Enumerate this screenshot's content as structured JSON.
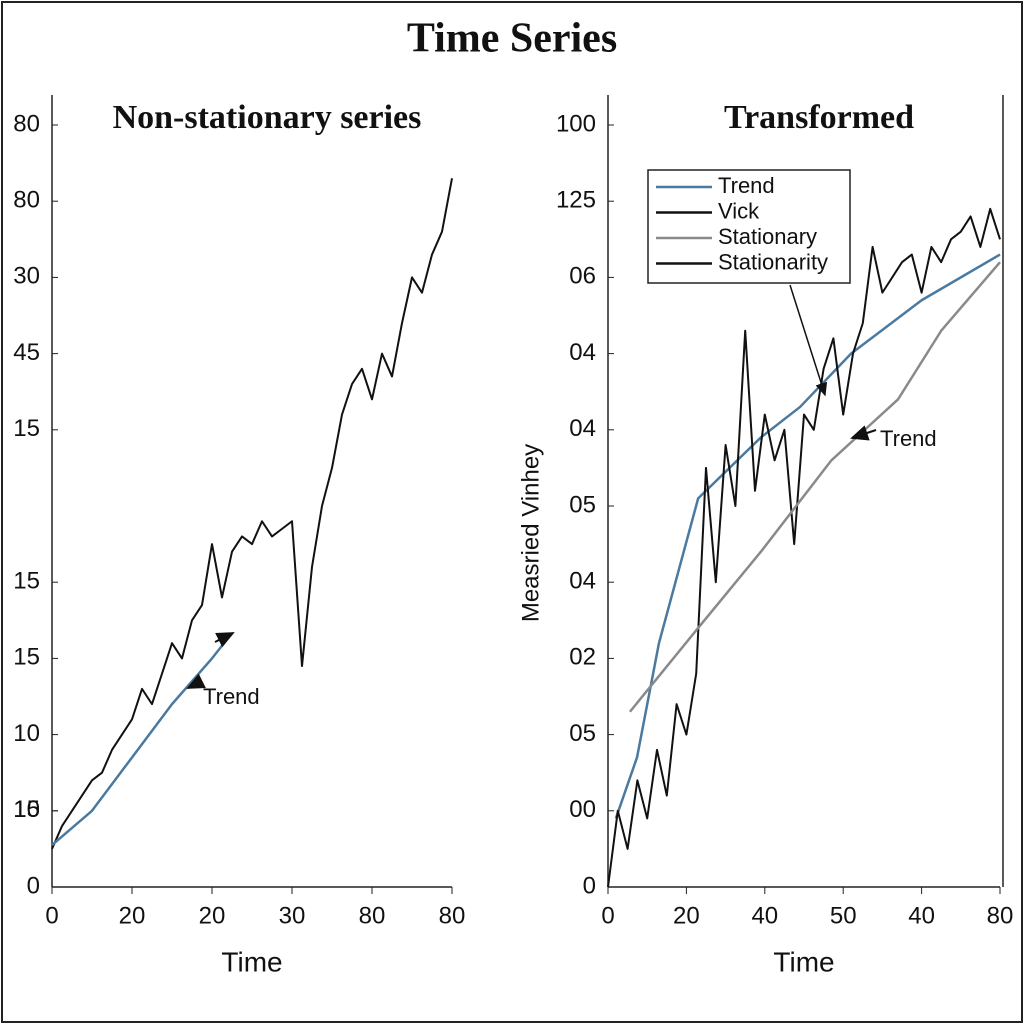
{
  "title": "Time Series",
  "chart_data": [
    {
      "type": "line",
      "title": "Non-stationary series",
      "xlabel": "Time",
      "annotation": "Trend",
      "xlim": [
        0,
        100
      ],
      "xticks": [
        0,
        20,
        {
          "value": 40,
          "label": "20"
        },
        {
          "value": 60,
          "label": "30"
        },
        80,
        {
          "value": 100,
          "label": "80"
        }
      ],
      "ylim": [
        0,
        100
      ],
      "yticks": [
        0,
        {
          "value": 10,
          "label": "15"
        },
        {
          "value": 20,
          "label": "10"
        },
        {
          "value": 30,
          "label": "15"
        },
        {
          "value": 40,
          "label": "15"
        },
        10,
        {
          "value": 60,
          "label": "15"
        },
        {
          "value": 70,
          "label": "45"
        },
        {
          "value": 80,
          "label": "30"
        },
        {
          "value": 90,
          "label": "80"
        },
        {
          "value": 100,
          "label": "80"
        }
      ],
      "series": [
        {
          "color": "#111111",
          "x": [
            0,
            2.5,
            5,
            7.5,
            10,
            12.5,
            15,
            17.5,
            20,
            22.5,
            25,
            27.5,
            30,
            32.5,
            35,
            37.5,
            40,
            42.5,
            45,
            47.5,
            50,
            52.5,
            55,
            57.5,
            60,
            62.5,
            65,
            67.5,
            70,
            72.5,
            75,
            77.5,
            80,
            82.5,
            85,
            87.5,
            90,
            92.5,
            95,
            97.5,
            100
          ],
          "values": [
            5,
            8,
            10,
            12,
            14,
            15,
            18,
            20,
            22,
            26,
            24,
            28,
            32,
            30,
            35,
            37,
            45,
            38,
            44,
            46,
            45,
            48,
            46,
            47,
            48,
            29,
            42,
            50,
            55,
            62,
            66,
            68,
            64,
            70,
            67,
            74,
            80,
            78,
            83,
            86,
            93
          ]
        },
        {
          "color": "#4a7aa0",
          "x": [
            0,
            10,
            20,
            30,
            40,
            43
          ],
          "values": [
            5.5,
            10,
            17,
            24,
            30,
            32
          ]
        }
      ]
    },
    {
      "type": "line",
      "title": "Transformed",
      "xlabel": "Time",
      "ylabel": "Measried Vinhey",
      "annotation": "Trend",
      "xlim": [
        0,
        100
      ],
      "xticks": [
        0,
        20,
        40,
        {
          "value": 60,
          "label": "50"
        },
        {
          "value": 80,
          "label": "40"
        },
        {
          "value": 100,
          "label": "80"
        }
      ],
      "ylim": [
        0,
        100
      ],
      "yticks": [
        0,
        {
          "value": 10,
          "label": "00"
        },
        {
          "value": 20,
          "label": "05"
        },
        {
          "value": 30,
          "label": "02"
        },
        {
          "value": 40,
          "label": "04"
        },
        {
          "value": 50,
          "label": "05"
        },
        {
          "value": 60,
          "label": "04"
        },
        {
          "value": 70,
          "label": "04"
        },
        {
          "value": 80,
          "label": "06"
        },
        {
          "value": 90,
          "label": "125"
        },
        100
      ],
      "series": [
        {
          "name": "Trend",
          "color": "#4a7aa0",
          "x": [
            2,
            7.4,
            13,
            23,
            39,
            49,
            62,
            80,
            100
          ],
          "values": [
            9,
            17,
            32,
            51,
            59,
            63,
            70,
            77,
            83
          ]
        },
        {
          "name": "Vick",
          "color": "#111111",
          "x": [
            0,
            2.5,
            5,
            7.5,
            10,
            12.5,
            15,
            17.5,
            20,
            22.5,
            25,
            27.5,
            30,
            32.5,
            35,
            37.5,
            40,
            42.5,
            45,
            47.5,
            50,
            52.5,
            55,
            57.5,
            60,
            62.5,
            65,
            67.5,
            70,
            72.5,
            75,
            77.5,
            80,
            82.5,
            85,
            87.5,
            90,
            92.5,
            95,
            97.5,
            100
          ],
          "values": [
            0,
            10,
            5,
            14,
            9,
            18,
            12,
            24,
            20,
            28,
            55,
            40,
            58,
            50,
            73,
            52,
            62,
            56,
            60,
            45,
            62,
            60,
            68,
            72,
            62,
            70,
            74,
            84,
            78,
            80,
            82,
            83,
            78,
            84,
            82,
            85,
            86,
            88,
            84,
            89,
            85
          ]
        },
        {
          "name": "Stationary",
          "color": "#8a8a8a",
          "x": [
            5.6,
            23,
            39,
            57,
            74,
            85,
            100
          ],
          "values": [
            23,
            34,
            44,
            56,
            64,
            73,
            82
          ]
        }
      ],
      "legend_extra": [
        {
          "name": "Stationarity",
          "color": "#111111"
        }
      ]
    }
  ]
}
